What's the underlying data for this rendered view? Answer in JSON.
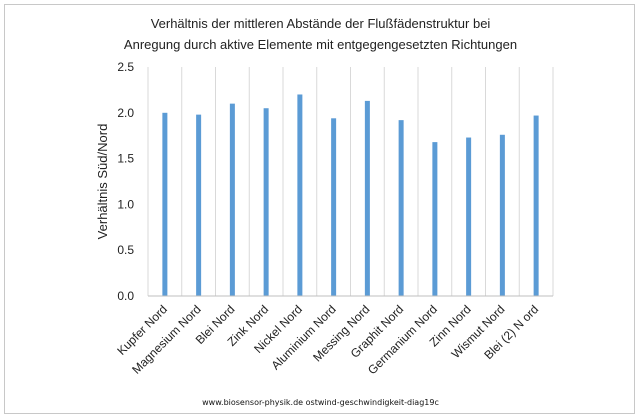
{
  "chart_data": {
    "type": "bar",
    "title_lines": [
      "Verhältnis der mittleren Abstände der Flußfädenstruktur bei",
      "Anregung durch aktive Elemente mit entgegengesetzten Richtungen"
    ],
    "xlabel": "",
    "ylabel": "Verhältnis Süd/Nord",
    "ylim": [
      0,
      2.5
    ],
    "yticks": [
      "0.0",
      "0.5",
      "1.0",
      "1.5",
      "2.0",
      "2.5"
    ],
    "grid": "vertical",
    "categories": [
      "Kupfer Nord",
      "Magnesium Nord",
      "Blei Nord",
      "Zink Nord",
      "Nickel Nord",
      "Aluminium Nord",
      "Messing Nord",
      "Graphit Nord",
      "Germanium Nord",
      "Zinn Nord",
      "Wismut Nord",
      "Blei (2) N ord"
    ],
    "values": [
      2.0,
      1.98,
      2.1,
      2.05,
      2.2,
      1.94,
      2.13,
      1.92,
      1.68,
      1.73,
      1.76,
      1.97
    ],
    "bar_color": "#5b9bd5"
  },
  "footer": "www.biosensor-physik.de  ostwind-geschwindigkeit-diag19c"
}
